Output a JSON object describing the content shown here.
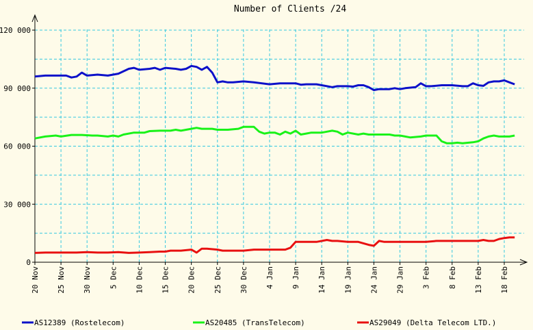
{
  "chart_data": {
    "type": "line",
    "title": "Number of Clients /24",
    "xlabel": "",
    "ylabel": "",
    "ylim": [
      0,
      120000
    ],
    "yticks": [
      {
        "value": 0,
        "label": "0"
      },
      {
        "value": 30000,
        "label": "30 000"
      },
      {
        "value": 60000,
        "label": "60 000"
      },
      {
        "value": 90000,
        "label": "90 000"
      },
      {
        "value": 120000,
        "label": "120 000"
      }
    ],
    "x_range": [
      0,
      90
    ],
    "x_unit": "days",
    "xticks": [
      {
        "day": 0,
        "label": "20 Nov"
      },
      {
        "day": 5,
        "label": "25 Nov"
      },
      {
        "day": 10,
        "label": "30 Nov"
      },
      {
        "day": 15,
        "label": "5 Dec"
      },
      {
        "day": 20,
        "label": "10 Dec"
      },
      {
        "day": 25,
        "label": "15 Dec"
      },
      {
        "day": 30,
        "label": "20 Dec"
      },
      {
        "day": 35,
        "label": "25 Dec"
      },
      {
        "day": 40,
        "label": "30 Dec"
      },
      {
        "day": 45,
        "label": "4 Jan"
      },
      {
        "day": 50,
        "label": "9 Jan"
      },
      {
        "day": 55,
        "label": "14 Jan"
      },
      {
        "day": 60,
        "label": "19 Jan"
      },
      {
        "day": 65,
        "label": "24 Jan"
      },
      {
        "day": 70,
        "label": "29 Jan"
      },
      {
        "day": 75,
        "label": "3 Feb"
      },
      {
        "day": 80,
        "label": "8 Feb"
      },
      {
        "day": 85,
        "label": "13 Feb"
      },
      {
        "day": 90,
        "label": "18 Feb"
      }
    ],
    "grid": true,
    "legend_position": "bottom",
    "series": [
      {
        "name": "AS12389 (Rostelecom)",
        "color": "#0c11c9",
        "points": [
          [
            0,
            96000
          ],
          [
            2,
            96500
          ],
          [
            4,
            96500
          ],
          [
            6,
            96500
          ],
          [
            7,
            95500
          ],
          [
            8,
            96000
          ],
          [
            9,
            98000
          ],
          [
            10,
            96500
          ],
          [
            12,
            97000
          ],
          [
            14,
            96500
          ],
          [
            15,
            97000
          ],
          [
            16,
            97500
          ],
          [
            18,
            100000
          ],
          [
            19,
            100500
          ],
          [
            20,
            99500
          ],
          [
            22,
            100000
          ],
          [
            23,
            100500
          ],
          [
            24,
            99500
          ],
          [
            25,
            100500
          ],
          [
            27,
            100000
          ],
          [
            28,
            99500
          ],
          [
            29,
            100000
          ],
          [
            30,
            101500
          ],
          [
            31,
            101000
          ],
          [
            32,
            99500
          ],
          [
            33,
            101000
          ],
          [
            34,
            98000
          ],
          [
            35,
            93000
          ],
          [
            36,
            93500
          ],
          [
            37,
            93000
          ],
          [
            38,
            93000
          ],
          [
            40,
            93500
          ],
          [
            42,
            93000
          ],
          [
            45,
            92000
          ],
          [
            47,
            92500
          ],
          [
            49,
            92500
          ],
          [
            50,
            92500
          ],
          [
            51,
            91800
          ],
          [
            52,
            92000
          ],
          [
            54,
            92000
          ],
          [
            56,
            91000
          ],
          [
            57,
            90500
          ],
          [
            58,
            91000
          ],
          [
            60,
            91000
          ],
          [
            61,
            90800
          ],
          [
            62,
            91500
          ],
          [
            63,
            91500
          ],
          [
            64,
            90500
          ],
          [
            65,
            89000
          ],
          [
            66,
            89500
          ],
          [
            68,
            89500
          ],
          [
            69,
            90000
          ],
          [
            70,
            89500
          ],
          [
            71,
            90000
          ],
          [
            73,
            90500
          ],
          [
            74,
            92500
          ],
          [
            75,
            91000
          ],
          [
            76,
            91000
          ],
          [
            78,
            91500
          ],
          [
            80,
            91500
          ],
          [
            82,
            91000
          ],
          [
            83,
            91000
          ],
          [
            84,
            92500
          ],
          [
            85,
            91500
          ],
          [
            86,
            91200
          ],
          [
            87,
            93000
          ],
          [
            88,
            93500
          ],
          [
            89,
            93500
          ],
          [
            90,
            94000
          ],
          [
            91,
            93000
          ],
          [
            92,
            92000
          ]
        ]
      },
      {
        "name": "AS20485 (TransTelecom)",
        "color": "#19f219",
        "points": [
          [
            0,
            64000
          ],
          [
            2,
            65000
          ],
          [
            4,
            65500
          ],
          [
            5,
            65000
          ],
          [
            7,
            65800
          ],
          [
            9,
            65800
          ],
          [
            11,
            65500
          ],
          [
            12,
            65500
          ],
          [
            14,
            65000
          ],
          [
            15,
            65500
          ],
          [
            16,
            65000
          ],
          [
            17,
            66000
          ],
          [
            19,
            67000
          ],
          [
            20,
            67000
          ],
          [
            21,
            67000
          ],
          [
            22,
            67800
          ],
          [
            24,
            68000
          ],
          [
            26,
            68000
          ],
          [
            27,
            68500
          ],
          [
            28,
            68000
          ],
          [
            29,
            68500
          ],
          [
            30,
            69000
          ],
          [
            31,
            69500
          ],
          [
            32,
            69000
          ],
          [
            34,
            69000
          ],
          [
            35,
            68500
          ],
          [
            37,
            68500
          ],
          [
            39,
            69000
          ],
          [
            40,
            70000
          ],
          [
            42,
            70000
          ],
          [
            43,
            67500
          ],
          [
            44,
            66500
          ],
          [
            45,
            67000
          ],
          [
            46,
            67000
          ],
          [
            47,
            66000
          ],
          [
            48,
            67500
          ],
          [
            49,
            66500
          ],
          [
            50,
            68000
          ],
          [
            51,
            66000
          ],
          [
            52,
            66500
          ],
          [
            53,
            67000
          ],
          [
            55,
            67000
          ],
          [
            56,
            67500
          ],
          [
            57,
            68000
          ],
          [
            58,
            67500
          ],
          [
            59,
            66000
          ],
          [
            60,
            67000
          ],
          [
            62,
            66000
          ],
          [
            63,
            66500
          ],
          [
            64,
            66000
          ],
          [
            66,
            66000
          ],
          [
            68,
            66000
          ],
          [
            69,
            65500
          ],
          [
            70,
            65500
          ],
          [
            71,
            65000
          ],
          [
            72,
            64500
          ],
          [
            74,
            65000
          ],
          [
            75,
            65500
          ],
          [
            76,
            65500
          ],
          [
            77,
            65500
          ],
          [
            78,
            62500
          ],
          [
            79,
            61500
          ],
          [
            80,
            61500
          ],
          [
            81,
            61800
          ],
          [
            82,
            61500
          ],
          [
            84,
            62000
          ],
          [
            85,
            62500
          ],
          [
            86,
            64000
          ],
          [
            87,
            65000
          ],
          [
            88,
            65500
          ],
          [
            89,
            65000
          ],
          [
            90,
            65000
          ],
          [
            91,
            65000
          ],
          [
            92,
            65500
          ]
        ]
      },
      {
        "name": "AS29049 (Delta Telecom LTD.)",
        "color": "#e81010",
        "points": [
          [
            0,
            4800
          ],
          [
            2,
            5000
          ],
          [
            4,
            5000
          ],
          [
            6,
            5000
          ],
          [
            8,
            5000
          ],
          [
            10,
            5200
          ],
          [
            12,
            5000
          ],
          [
            14,
            5000
          ],
          [
            16,
            5200
          ],
          [
            18,
            4800
          ],
          [
            20,
            5000
          ],
          [
            22,
            5200
          ],
          [
            24,
            5500
          ],
          [
            25,
            5500
          ],
          [
            26,
            6000
          ],
          [
            28,
            6000
          ],
          [
            30,
            6500
          ],
          [
            31,
            5000
          ],
          [
            32,
            7000
          ],
          [
            33,
            7000
          ],
          [
            35,
            6500
          ],
          [
            36,
            6000
          ],
          [
            38,
            6000
          ],
          [
            40,
            6000
          ],
          [
            42,
            6500
          ],
          [
            44,
            6500
          ],
          [
            46,
            6500
          ],
          [
            48,
            6500
          ],
          [
            49,
            7500
          ],
          [
            50,
            10500
          ],
          [
            51,
            10500
          ],
          [
            52,
            10500
          ],
          [
            54,
            10500
          ],
          [
            56,
            11500
          ],
          [
            57,
            11000
          ],
          [
            58,
            11000
          ],
          [
            60,
            10500
          ],
          [
            62,
            10500
          ],
          [
            64,
            9000
          ],
          [
            65,
            8500
          ],
          [
            66,
            11000
          ],
          [
            67,
            10500
          ],
          [
            69,
            10500
          ],
          [
            71,
            10500
          ],
          [
            73,
            10500
          ],
          [
            75,
            10500
          ],
          [
            77,
            11000
          ],
          [
            79,
            11000
          ],
          [
            81,
            11000
          ],
          [
            83,
            11000
          ],
          [
            85,
            11000
          ],
          [
            86,
            11500
          ],
          [
            87,
            11000
          ],
          [
            88,
            11000
          ],
          [
            89,
            12000
          ],
          [
            90,
            12500
          ],
          [
            91,
            12800
          ],
          [
            92,
            12800
          ]
        ]
      }
    ]
  }
}
